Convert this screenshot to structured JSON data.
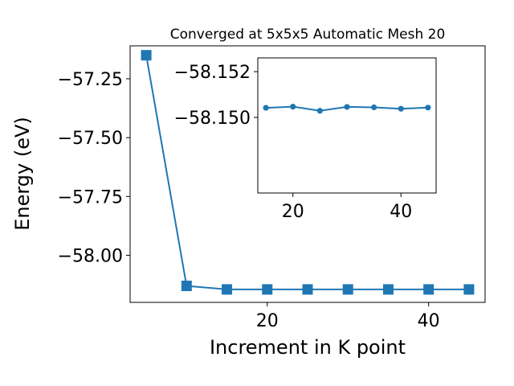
{
  "chart_data": [
    {
      "type": "line",
      "title": "Converged at 5x5x5 Automatic Mesh 20",
      "xlabel": "Increment in K point",
      "ylabel": "Energy (eV)",
      "x": [
        5,
        10,
        15,
        20,
        25,
        30,
        35,
        40,
        45
      ],
      "series": [
        {
          "values": [
            -57.15,
            -58.13,
            -58.145,
            -58.145,
            -58.145,
            -58.145,
            -58.145,
            -58.145,
            -58.145
          ],
          "color": "#1f77b4",
          "marker": "square"
        }
      ],
      "xlim": [
        3.0,
        47.0
      ],
      "ylim": [
        -58.2,
        -57.11
      ],
      "xticks": [
        20,
        40
      ],
      "xtick_labels": [
        "20",
        "40"
      ],
      "yticks": [
        -57.25,
        -57.5,
        -57.75,
        -58.0
      ],
      "ytick_labels": [
        "−57.25",
        "−57.50",
        "−57.75",
        "−58.00"
      ],
      "grid": false
    },
    {
      "type": "line",
      "title": "",
      "x": [
        15,
        20,
        25,
        30,
        35,
        40,
        45
      ],
      "series": [
        {
          "values": [
            -58.15042,
            -58.15047,
            -58.15029,
            -58.15046,
            -58.15044,
            -58.15038,
            -58.15043
          ],
          "color": "#1f77b4",
          "marker": "circle"
        }
      ],
      "xlim": [
        13.5,
        46.5
      ],
      "ylim": [
        -58.1467,
        -58.1526
      ],
      "xticks": [
        20,
        40
      ],
      "xtick_labels": [
        "20",
        "40"
      ],
      "yticks": [
        -58.152,
        -58.15
      ],
      "ytick_labels": [
        "−58.152",
        "−58.150"
      ],
      "grid": false
    }
  ]
}
